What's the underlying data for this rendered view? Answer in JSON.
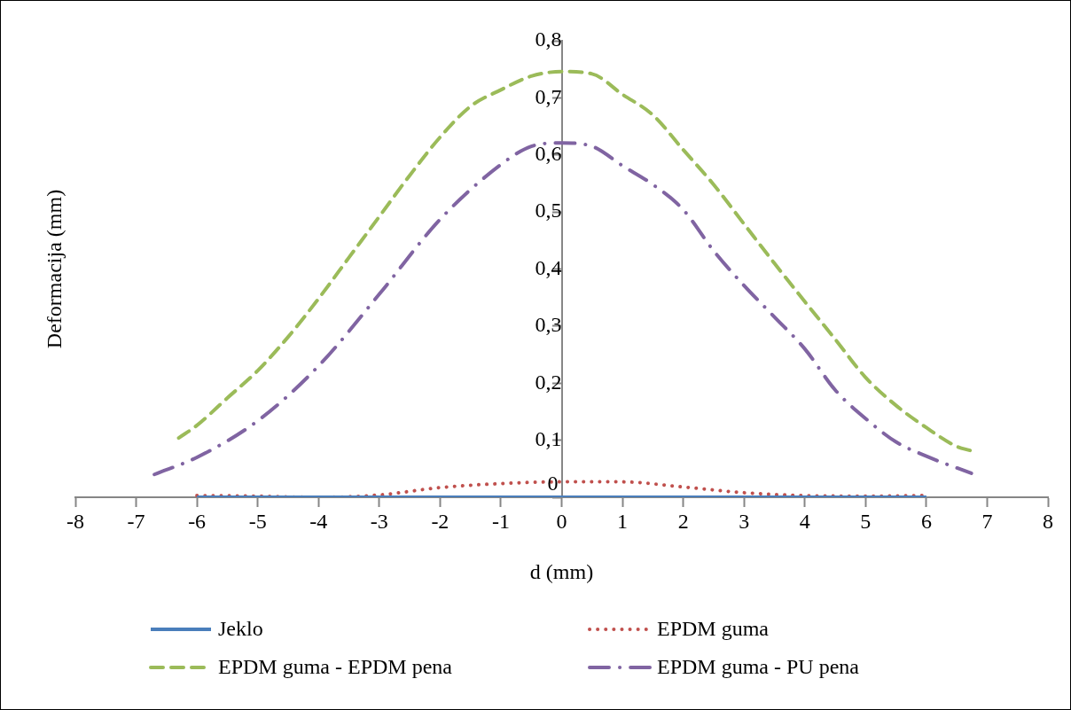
{
  "chart_data": {
    "type": "line",
    "xlabel": "d (mm)",
    "ylabel": "Deformacija (mm)",
    "xlim": [
      -8,
      8
    ],
    "ylim": [
      0,
      0.8
    ],
    "xticks": [
      -8,
      -7,
      -6,
      -5,
      -4,
      -3,
      -2,
      -1,
      0,
      1,
      2,
      3,
      4,
      5,
      6,
      7,
      8
    ],
    "yticks": [
      0,
      {
        "value": 0.1,
        "label": "0,1"
      },
      {
        "value": 0.2,
        "label": "0,2"
      },
      {
        "value": 0.3,
        "label": "0,3"
      },
      {
        "value": 0.4,
        "label": "0,4"
      },
      {
        "value": 0.5,
        "label": "0,5"
      },
      {
        "value": 0.6,
        "label": "0,6"
      },
      {
        "value": 0.7,
        "label": "0,7"
      },
      {
        "value": 0.8,
        "label": "0,8"
      }
    ],
    "legend": "bottom",
    "series": [
      {
        "name": "Jeklo",
        "color": "#4a7ebb",
        "line_style": "solid",
        "x": [
          -6,
          6
        ],
        "values": [
          0,
          0
        ]
      },
      {
        "name": "EPDM guma",
        "color": "#c0504d",
        "line_style": "dotted",
        "x": [
          -6,
          -5,
          -4,
          -3,
          -2,
          -1,
          0,
          1,
          2,
          3,
          4,
          5,
          6
        ],
        "values": [
          0.003,
          0.002,
          0,
          0.004,
          0.017,
          0.024,
          0.027,
          0.027,
          0.018,
          0.008,
          0.003,
          0.002,
          0.003
        ]
      },
      {
        "name": "EPDM guma - EPDM pena",
        "color": "#9bbb59",
        "line_style": "dashed",
        "x": [
          -6.3,
          -6,
          -5.5,
          -5,
          -4.5,
          -4,
          -3.5,
          -3,
          -2.5,
          -2,
          -1.5,
          -1,
          -0.5,
          0,
          0.5,
          1,
          1.5,
          2,
          2.5,
          3,
          3.5,
          4,
          4.5,
          5,
          5.5,
          6,
          6.5,
          6.72
        ],
        "values": [
          0.104,
          0.126,
          0.174,
          0.222,
          0.281,
          0.348,
          0.42,
          0.492,
          0.564,
          0.631,
          0.685,
          0.714,
          0.738,
          0.746,
          0.742,
          0.706,
          0.67,
          0.609,
          0.548,
          0.479,
          0.41,
          0.343,
          0.277,
          0.21,
          0.161,
          0.122,
          0.089,
          0.082
        ]
      },
      {
        "name": "EPDM guma - PU pena",
        "color": "#8064a2",
        "line_style": "dashdot",
        "x": [
          -6.7,
          -6,
          -5,
          -4,
          -3,
          -2,
          -1,
          -0.5,
          0,
          0.5,
          1,
          1.5,
          2,
          2.5,
          3,
          3.5,
          4,
          4.5,
          5,
          5.5,
          6,
          6.74
        ],
        "values": [
          0.04,
          0.07,
          0.134,
          0.23,
          0.356,
          0.487,
          0.583,
          0.615,
          0.621,
          0.615,
          0.581,
          0.548,
          0.504,
          0.432,
          0.371,
          0.316,
          0.26,
          0.188,
          0.138,
          0.097,
          0.072,
          0.042
        ]
      }
    ]
  }
}
